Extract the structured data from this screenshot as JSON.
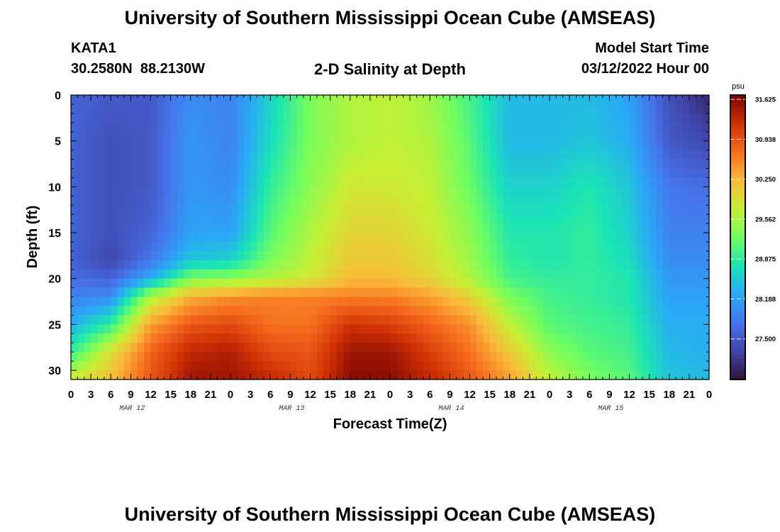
{
  "header": {
    "title": "University of Southern Mississippi Ocean Cube (AMSEAS)",
    "station_id": "KATA1",
    "station_coords": "30.2580N  88.2130W",
    "chart_title": "2-D Salinity at Depth",
    "model_start_label": "Model Start Time",
    "model_start_value": "03/12/2022 Hour 00"
  },
  "footer": {
    "repeated_title": "University of Southern Mississippi Ocean Cube (AMSEAS)"
  },
  "chart_data": {
    "type": "heatmap",
    "title": "2-D Salinity at Depth",
    "xlabel": "Forecast Time(Z)",
    "ylabel": "Depth (ft)",
    "x_tick_labels": [
      "0",
      "3",
      "6",
      "9",
      "12",
      "15",
      "18",
      "21",
      "0",
      "3",
      "6",
      "9",
      "12",
      "15",
      "18",
      "21",
      "0",
      "3",
      "6",
      "9",
      "12",
      "15",
      "18",
      "21",
      "0",
      "3",
      "6",
      "9",
      "12",
      "15",
      "18",
      "21",
      "0"
    ],
    "day_labels": [
      {
        "label": "MAR 12",
        "at_hour": 9
      },
      {
        "label": "MAR 13",
        "at_hour": 33
      },
      {
        "label": "MAR 14",
        "at_hour": 57
      },
      {
        "label": "MAR 15",
        "at_hour": 81
      }
    ],
    "xlim_hours": [
      0,
      96
    ],
    "ylim_depth_ft": [
      0,
      31
    ],
    "y_ticks": [
      0,
      5,
      10,
      15,
      20,
      25,
      30
    ],
    "y_inverted": true,
    "colorbar": {
      "unit": "psu",
      "vmin": 26.8,
      "vmax": 31.7,
      "tick_values": [
        31.625,
        30.938,
        30.25,
        29.562,
        28.875,
        28.188,
        27.5
      ],
      "tick_labels": [
        "31.625",
        "30.938",
        "30.250",
        "29.562",
        "28.875",
        "28.188",
        "27.500"
      ],
      "colormap": "turbo"
    },
    "time_hours": [
      0,
      6,
      12,
      18,
      24,
      30,
      36,
      42,
      48,
      54,
      60,
      66,
      72,
      78,
      84,
      90,
      96
    ],
    "depths_ft": [
      0,
      5,
      10,
      15,
      18,
      20,
      22,
      25,
      28,
      31
    ],
    "salinity_psu": [
      [
        27.6,
        27.5,
        27.5,
        28.0,
        27.9,
        28.6,
        29.3,
        29.6,
        29.7,
        29.5,
        29.0,
        28.4,
        28.4,
        28.4,
        28.2,
        27.4,
        27.0
      ],
      [
        27.6,
        27.4,
        27.5,
        28.1,
        27.9,
        28.7,
        29.3,
        29.6,
        29.7,
        29.6,
        29.1,
        28.4,
        28.4,
        28.5,
        28.3,
        27.5,
        27.3
      ],
      [
        27.6,
        27.4,
        27.5,
        28.1,
        28.0,
        28.9,
        29.4,
        29.8,
        29.8,
        29.7,
        29.2,
        28.6,
        28.6,
        28.8,
        28.5,
        27.8,
        27.7
      ],
      [
        27.6,
        27.4,
        27.6,
        28.2,
        28.2,
        29.1,
        29.6,
        30.0,
        30.0,
        29.8,
        29.4,
        28.8,
        28.8,
        28.9,
        28.6,
        27.9,
        27.9
      ],
      [
        27.6,
        27.3,
        27.8,
        28.5,
        28.6,
        29.3,
        29.7,
        30.1,
        30.1,
        29.9,
        29.5,
        28.9,
        28.8,
        28.9,
        28.7,
        28.0,
        28.0
      ],
      [
        27.7,
        27.6,
        28.3,
        29.3,
        29.4,
        29.6,
        29.8,
        30.2,
        30.2,
        30.0,
        29.6,
        29.0,
        28.9,
        28.9,
        28.8,
        28.1,
        28.1
      ],
      [
        27.9,
        28.0,
        29.6,
        30.3,
        30.5,
        30.6,
        30.6,
        30.6,
        30.6,
        30.4,
        30.0,
        29.3,
        29.0,
        28.9,
        28.8,
        28.2,
        28.2
      ],
      [
        28.3,
        28.9,
        30.4,
        30.9,
        31.0,
        30.7,
        30.7,
        31.2,
        31.1,
        30.8,
        30.5,
        29.7,
        29.1,
        29.0,
        28.9,
        28.3,
        28.3
      ],
      [
        28.9,
        29.9,
        30.8,
        31.3,
        31.4,
        31.0,
        30.9,
        31.5,
        31.5,
        31.1,
        30.7,
        30.1,
        29.4,
        29.1,
        29.0,
        28.4,
        28.3
      ],
      [
        29.8,
        30.2,
        30.9,
        31.5,
        31.5,
        31.3,
        31.0,
        31.6,
        31.6,
        31.3,
        30.9,
        30.4,
        29.7,
        29.3,
        29.1,
        28.5,
        28.4
      ]
    ]
  }
}
